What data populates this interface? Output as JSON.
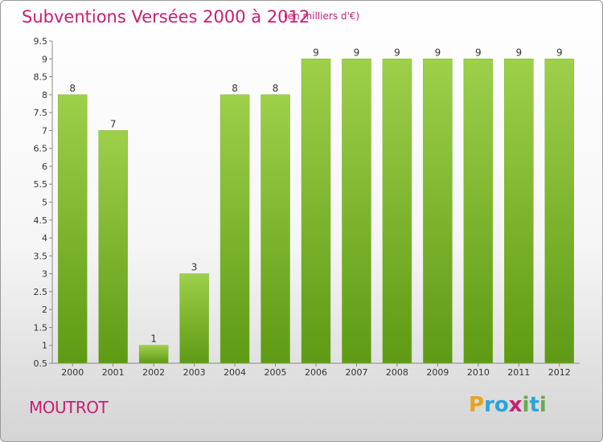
{
  "title": "Subventions Versées 2000 à 2012",
  "subtitle": "(en milliers d'€)",
  "commune": "MOUTROT",
  "logo": {
    "text": "Proxiti",
    "letters": [
      {
        "ch": "P",
        "color": "#e8a21c"
      },
      {
        "ch": "r",
        "color": "#2aa4d8"
      },
      {
        "ch": "o",
        "color": "#2aa4d8"
      },
      {
        "ch": "x",
        "color": "#c81e73"
      },
      {
        "ch": "i",
        "color": "#6aa84f"
      },
      {
        "ch": "t",
        "color": "#2aa4d8"
      },
      {
        "ch": "i",
        "color": "#6aa84f"
      }
    ]
  },
  "chart_data": {
    "type": "bar",
    "categories": [
      "2000",
      "2001",
      "2002",
      "2003",
      "2004",
      "2005",
      "2006",
      "2007",
      "2008",
      "2009",
      "2010",
      "2011",
      "2012"
    ],
    "values": [
      8,
      7,
      1,
      3,
      8,
      8,
      9,
      9,
      9,
      9,
      9,
      9,
      9
    ],
    "ylim": [
      0.5,
      9.5
    ],
    "yticks": [
      "0.5",
      "1",
      "1.5",
      "2",
      "2.5",
      "3",
      "3.5",
      "4",
      "4.5",
      "5",
      "5.5",
      "6",
      "6.5",
      "7",
      "7.5",
      "8",
      "8.5",
      "9",
      "9.5"
    ],
    "grid": false,
    "bar_color_top": "#9ed04a",
    "bar_color_bottom": "#5e9a14"
  }
}
